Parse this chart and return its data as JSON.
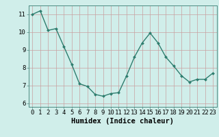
{
  "x": [
    0,
    1,
    2,
    3,
    4,
    5,
    6,
    7,
    8,
    9,
    10,
    11,
    12,
    13,
    14,
    15,
    16,
    17,
    18,
    19,
    20,
    21,
    22,
    23
  ],
  "y": [
    11.0,
    11.2,
    10.1,
    10.2,
    9.2,
    8.2,
    7.1,
    6.95,
    6.5,
    6.4,
    6.55,
    6.6,
    7.55,
    8.6,
    9.4,
    9.95,
    9.4,
    8.6,
    8.1,
    7.55,
    7.2,
    7.35,
    7.35,
    7.7
  ],
  "xlabel": "Humidex (Indice chaleur)",
  "ylim": [
    5.8,
    11.5
  ],
  "xlim": [
    -0.5,
    23.5
  ],
  "yticks": [
    6,
    7,
    8,
    9,
    10,
    11
  ],
  "xticks": [
    0,
    1,
    2,
    3,
    4,
    5,
    6,
    7,
    8,
    9,
    10,
    11,
    12,
    13,
    14,
    15,
    16,
    17,
    18,
    19,
    20,
    21,
    22,
    23
  ],
  "line_color": "#2e7d6e",
  "marker_color": "#2e7d6e",
  "bg_color": "#d0eeea",
  "grid_color": "#c8a0a0",
  "label_fontsize": 7.5,
  "tick_fontsize": 6.5,
  "marker": "D",
  "marker_size": 2.0,
  "line_width": 1.0
}
